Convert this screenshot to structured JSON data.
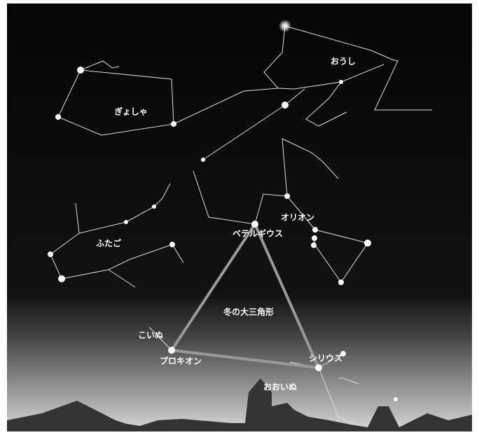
{
  "labels": [
    "おうし",
    "ぎょしゃ",
    "オリオン",
    "ベテルギウス",
    "ふたご",
    "冬の大三角形",
    "こいぬ",
    "プロキオン",
    "シリウス",
    "おおいぬ"
  ]
}
